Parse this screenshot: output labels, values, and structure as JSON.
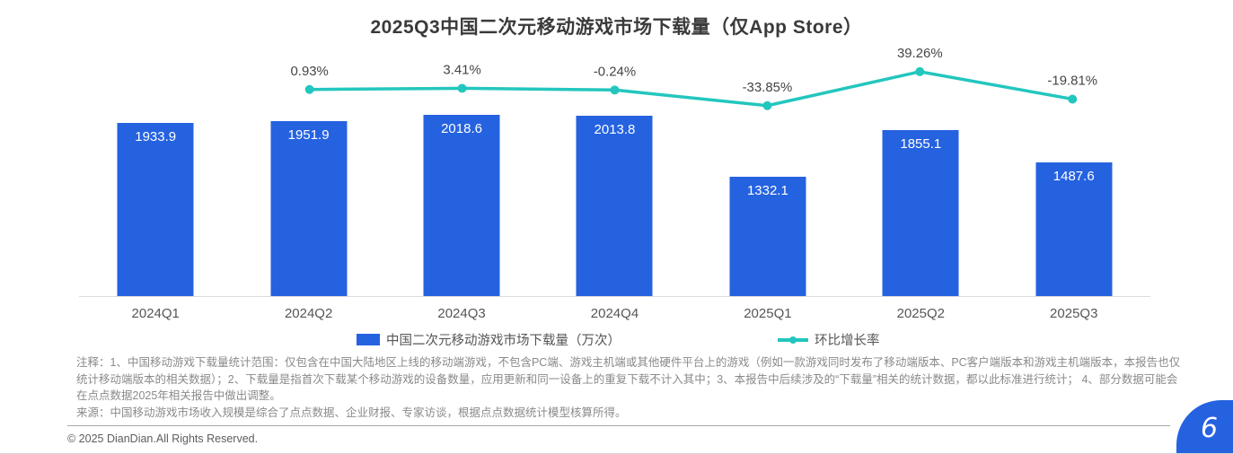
{
  "title": "2025Q3中国二次元移动游戏市场下载量（仅App Store）",
  "chart_data": {
    "type": "bar",
    "subtype": "bar-line-combo",
    "title": "2025Q3中国二次元移动游戏市场下载量（仅App Store）",
    "categories": [
      "2024Q1",
      "2024Q2",
      "2024Q3",
      "2024Q4",
      "2025Q1",
      "2025Q2",
      "2025Q3"
    ],
    "series": [
      {
        "name": "中国二次元移动游戏市场下载量（万次）",
        "type": "bar",
        "color": "#2562E0",
        "values": [
          1933.9,
          1951.9,
          2018.6,
          2013.8,
          1332.1,
          1855.1,
          1487.6
        ]
      },
      {
        "name": "环比增长率",
        "type": "line",
        "color": "#23C6BE",
        "unit": "%",
        "values": [
          null,
          0.93,
          3.41,
          -0.24,
          -33.85,
          39.26,
          -19.81
        ]
      }
    ],
    "value_labels": "shown",
    "legend_position": "bottom",
    "y_axis": "hidden",
    "grid": "off"
  },
  "legend": {
    "bar_label": "中国二次元移动游戏市场下载量（万次）",
    "line_label": "环比增长率"
  },
  "notes": {
    "annotation": "注释：1、中国移动游戏下载量统计范围：仅包含在中国大陆地区上线的移动端游戏，不包含PC端、游戏主机端或其他硬件平台上的游戏（例如一款游戏同时发布了移动端版本、PC客户端版本和游戏主机端版本，本报告也仅统计移动端版本的相关数据）；2、下载量是指首次下载某个移动游戏的设备数量，应用更新和同一设备上的重复下载不计入其中；3、本报告中后续涉及的“下载量”相关的统计数据，都以此标准进行统计； 4、部分数据可能会在点点数据2025年相关报告中做出调整。",
    "source": "来源：中国移动游戏市场收入规模是综合了点点数据、企业财报、专家访谈，根据点点数据统计模型核算所得。"
  },
  "footer": {
    "copyright": "© 2025 DianDian.All Rights Reserved.",
    "page_number": "6"
  }
}
